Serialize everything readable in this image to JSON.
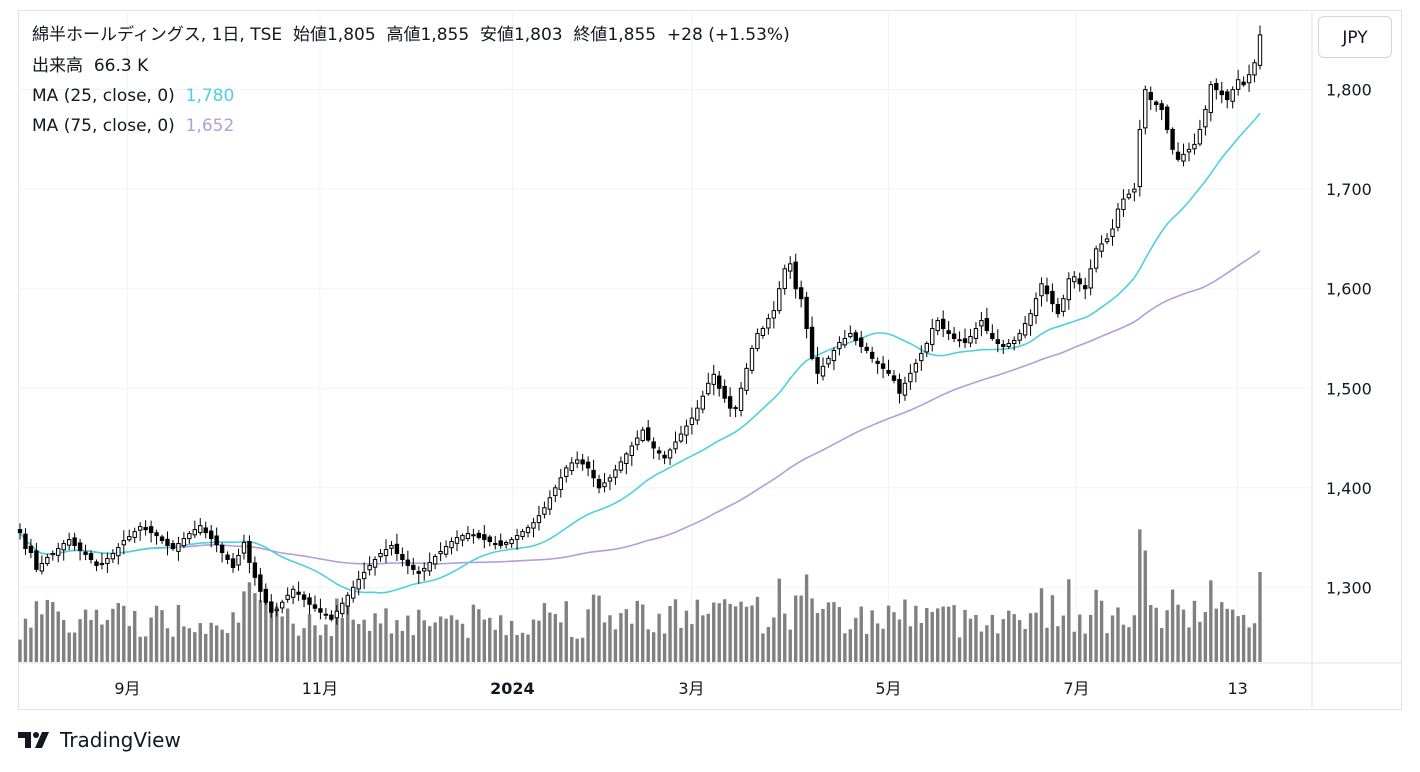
{
  "header": {
    "title_line": "綿半ホールディングス, 1日, TSE",
    "open_label": "始値",
    "open": "1,805",
    "high_label": "高値",
    "high": "1,855",
    "low_label": "安値",
    "low": "1,803",
    "close_label": "終値",
    "close": "1,855",
    "change": "+28 (+1.53%)",
    "volume_label": "出来高",
    "volume": "66.3 K",
    "ma25_label": "MA (25, close, 0)",
    "ma25_value": "1,780",
    "ma75_label": "MA (75, close, 0)",
    "ma75_value": "1,652"
  },
  "currency": "JPY",
  "brand": "TradingView",
  "colors": {
    "candle": "#000000",
    "volume": "#808080",
    "ma25": "#4dd0e1",
    "ma75": "#b39ddb",
    "grid": "#f0f3fa"
  },
  "chart_data": {
    "type": "candlestick",
    "y_range": [
      1225,
      1880
    ],
    "y_ticks": [
      "1,300",
      "1,400",
      "1,500",
      "1,600",
      "1,700",
      "1,800"
    ],
    "y_tick_values": [
      1300,
      1400,
      1500,
      1600,
      1700,
      1800
    ],
    "x_ticks": [
      "9月",
      "11月",
      "2024",
      "3月",
      "5月",
      "7月",
      "13"
    ],
    "x_tick_days": [
      24,
      67,
      110,
      150,
      194,
      236,
      272
    ],
    "day_range": [
      0,
      277
    ],
    "closes": [
      1355,
      1339,
      1335,
      1318,
      1324,
      1330,
      1334,
      1339,
      1344,
      1348,
      1342,
      1337,
      1333,
      1328,
      1322,
      1324,
      1329,
      1334,
      1340,
      1347,
      1351,
      1356,
      1361,
      1358,
      1355,
      1352,
      1347,
      1342,
      1339,
      1344,
      1349,
      1354,
      1358,
      1362,
      1355,
      1349,
      1343,
      1335,
      1328,
      1320,
      1332,
      1345,
      1325,
      1310,
      1296,
      1285,
      1275,
      1278,
      1285,
      1292,
      1298,
      1293,
      1288,
      1283,
      1279,
      1275,
      1272,
      1268,
      1276,
      1284,
      1292,
      1300,
      1308,
      1315,
      1322,
      1328,
      1334,
      1338,
      1342,
      1334,
      1328,
      1322,
      1318,
      1314,
      1319,
      1325,
      1331,
      1336,
      1341,
      1346,
      1350,
      1352,
      1354,
      1352,
      1350,
      1348,
      1346,
      1344,
      1342,
      1345,
      1348,
      1352,
      1356,
      1360,
      1365,
      1372,
      1380,
      1390,
      1400,
      1410,
      1420,
      1425,
      1428,
      1424,
      1420,
      1410,
      1400,
      1405,
      1410,
      1418,
      1426,
      1434,
      1442,
      1450,
      1458,
      1448,
      1440,
      1435,
      1430,
      1438,
      1446,
      1454,
      1462,
      1470,
      1480,
      1492,
      1505,
      1514,
      1500,
      1490,
      1480,
      1480,
      1500,
      1520,
      1540,
      1555,
      1560,
      1570,
      1578,
      1600,
      1620,
      1625,
      1600,
      1590,
      1560,
      1530,
      1515,
      1522,
      1530,
      1538,
      1546,
      1550,
      1555,
      1548,
      1542,
      1538,
      1530,
      1525,
      1520,
      1515,
      1508,
      1495,
      1505,
      1515,
      1525,
      1535,
      1545,
      1560,
      1568,
      1560,
      1555,
      1550,
      1548,
      1546,
      1552,
      1560,
      1568,
      1558,
      1550,
      1545,
      1542,
      1545,
      1548,
      1555,
      1565,
      1575,
      1590,
      1605,
      1595,
      1585,
      1575,
      1590,
      1610,
      1612,
      1605,
      1600,
      1620,
      1640,
      1645,
      1650,
      1660,
      1680,
      1690,
      1695,
      1700,
      1760,
      1800,
      1790,
      1785,
      1780,
      1760,
      1740,
      1730,
      1735,
      1740,
      1745,
      1760,
      1780,
      1805,
      1800,
      1795,
      1790,
      1800,
      1810,
      1805,
      1815,
      1827,
      1855
    ],
    "volume_range": [
      0,
      380000
    ],
    "volume_note": "volumes in shares; last bar 66.3 K"
  }
}
